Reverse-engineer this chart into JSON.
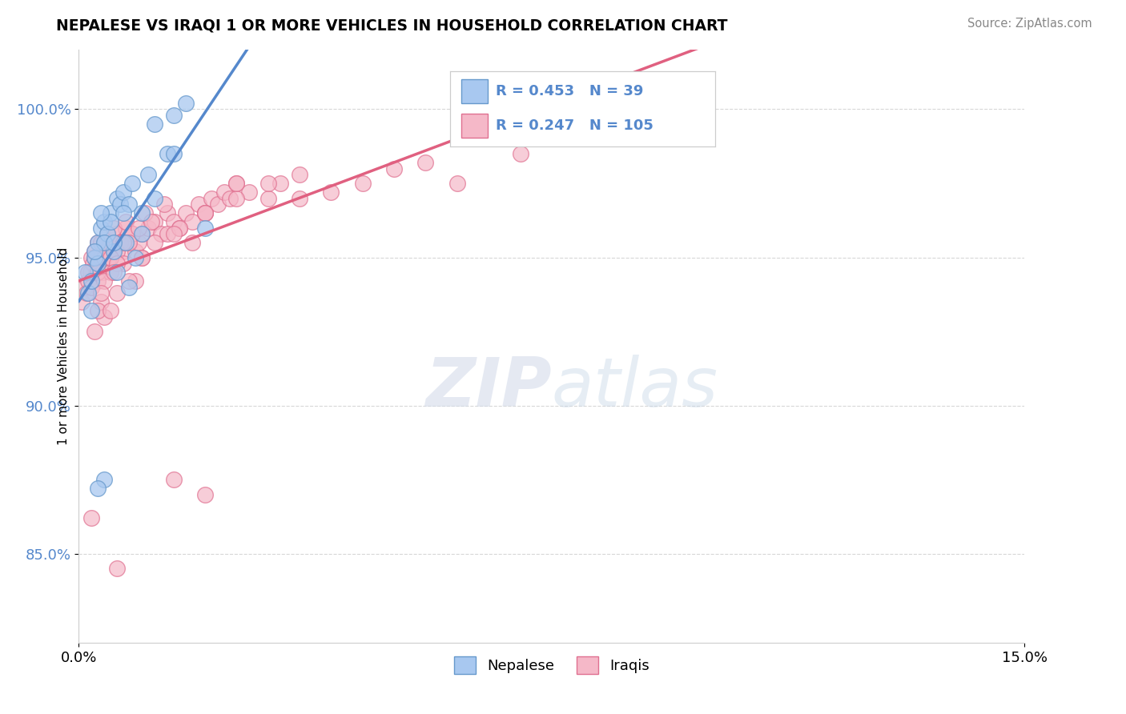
{
  "title": "NEPALESE VS IRAQI 1 OR MORE VEHICLES IN HOUSEHOLD CORRELATION CHART",
  "source_text": "Source: ZipAtlas.com",
  "ylabel": "1 or more Vehicles in Household",
  "xlim": [
    0.0,
    15.0
  ],
  "ylim": [
    82.0,
    102.0
  ],
  "x_ticks": [
    0.0,
    15.0
  ],
  "x_tick_labels": [
    "0.0%",
    "15.0%"
  ],
  "y_ticks": [
    85.0,
    90.0,
    95.0,
    100.0
  ],
  "y_tick_labels": [
    "85.0%",
    "90.0%",
    "95.0%",
    "100.0%"
  ],
  "nepalese_color": "#A8C8F0",
  "iraqi_color": "#F5B8C8",
  "nepalese_edge_color": "#6699CC",
  "iraqi_edge_color": "#E07090",
  "nepalese_line_color": "#5588CC",
  "iraqi_line_color": "#E06080",
  "legend_R_nepalese": "0.453",
  "legend_N_nepalese": "39",
  "legend_R_iraqi": "0.247",
  "legend_N_iraqi": "105",
  "nepalese_x": [
    0.1,
    0.15,
    0.2,
    0.25,
    0.3,
    0.35,
    0.4,
    0.45,
    0.5,
    0.55,
    0.6,
    0.65,
    0.7,
    0.75,
    0.8,
    0.85,
    0.9,
    1.0,
    1.1,
    1.2,
    1.4,
    1.5,
    1.7,
    0.2,
    0.3,
    0.4,
    0.5,
    0.6,
    0.7,
    0.8,
    1.0,
    1.5,
    2.0,
    0.25,
    0.35,
    0.55,
    1.2,
    0.4,
    0.3
  ],
  "nepalese_y": [
    94.5,
    93.8,
    94.2,
    95.0,
    95.5,
    96.0,
    96.2,
    95.8,
    96.5,
    95.2,
    97.0,
    96.8,
    97.2,
    95.5,
    96.8,
    97.5,
    95.0,
    96.5,
    97.8,
    99.5,
    98.5,
    99.8,
    100.2,
    93.2,
    94.8,
    95.5,
    96.2,
    94.5,
    96.5,
    94.0,
    95.8,
    98.5,
    96.0,
    95.2,
    96.5,
    95.5,
    97.0,
    87.5,
    87.2
  ],
  "iraqi_x": [
    0.05,
    0.1,
    0.12,
    0.15,
    0.18,
    0.2,
    0.22,
    0.25,
    0.28,
    0.3,
    0.32,
    0.35,
    0.38,
    0.4,
    0.42,
    0.45,
    0.48,
    0.5,
    0.55,
    0.6,
    0.65,
    0.7,
    0.75,
    0.8,
    0.85,
    0.9,
    0.95,
    1.0,
    1.1,
    1.2,
    1.3,
    1.4,
    1.5,
    1.6,
    1.7,
    1.8,
    1.9,
    2.0,
    2.1,
    2.2,
    2.3,
    2.4,
    2.5,
    2.7,
    3.0,
    3.2,
    3.5,
    4.0,
    4.5,
    5.0,
    5.5,
    6.0,
    7.0,
    0.15,
    0.25,
    0.35,
    0.45,
    0.55,
    0.65,
    0.75,
    0.85,
    0.95,
    1.05,
    1.15,
    1.35,
    0.3,
    0.4,
    0.5,
    0.6,
    0.7,
    0.8,
    0.9,
    1.0,
    1.2,
    1.4,
    1.6,
    2.0,
    2.5,
    3.0,
    0.2,
    0.3,
    0.4,
    0.5,
    0.6,
    0.7,
    0.8,
    1.0,
    1.5,
    2.0,
    0.35,
    0.55,
    1.8,
    0.4,
    0.6,
    0.25,
    0.3,
    0.35,
    2.5,
    3.5,
    0.5,
    0.2,
    1.5,
    2.0,
    0.6
  ],
  "iraqi_y": [
    93.5,
    94.0,
    93.8,
    94.2,
    94.5,
    95.0,
    94.8,
    95.2,
    94.5,
    95.5,
    94.8,
    95.0,
    94.5,
    95.5,
    95.2,
    94.8,
    95.0,
    95.5,
    95.2,
    95.8,
    95.5,
    95.2,
    96.0,
    95.5,
    95.8,
    95.2,
    95.5,
    95.8,
    96.0,
    96.2,
    95.8,
    96.5,
    96.2,
    96.0,
    96.5,
    96.2,
    96.8,
    96.5,
    97.0,
    96.8,
    97.2,
    97.0,
    97.5,
    97.2,
    97.0,
    97.5,
    97.8,
    97.2,
    97.5,
    98.0,
    98.2,
    97.5,
    98.5,
    94.5,
    95.0,
    95.5,
    95.8,
    96.0,
    95.5,
    96.2,
    95.8,
    96.0,
    96.5,
    96.2,
    96.8,
    94.2,
    95.0,
    94.5,
    95.2,
    94.8,
    95.5,
    94.2,
    95.0,
    95.5,
    95.8,
    96.0,
    96.5,
    97.0,
    97.5,
    94.0,
    94.5,
    94.2,
    95.0,
    94.8,
    95.5,
    94.2,
    95.0,
    95.8,
    96.5,
    93.5,
    94.5,
    95.5,
    93.0,
    93.8,
    92.5,
    93.2,
    93.8,
    97.5,
    97.0,
    93.2,
    86.2,
    87.5,
    87.0,
    84.5
  ]
}
